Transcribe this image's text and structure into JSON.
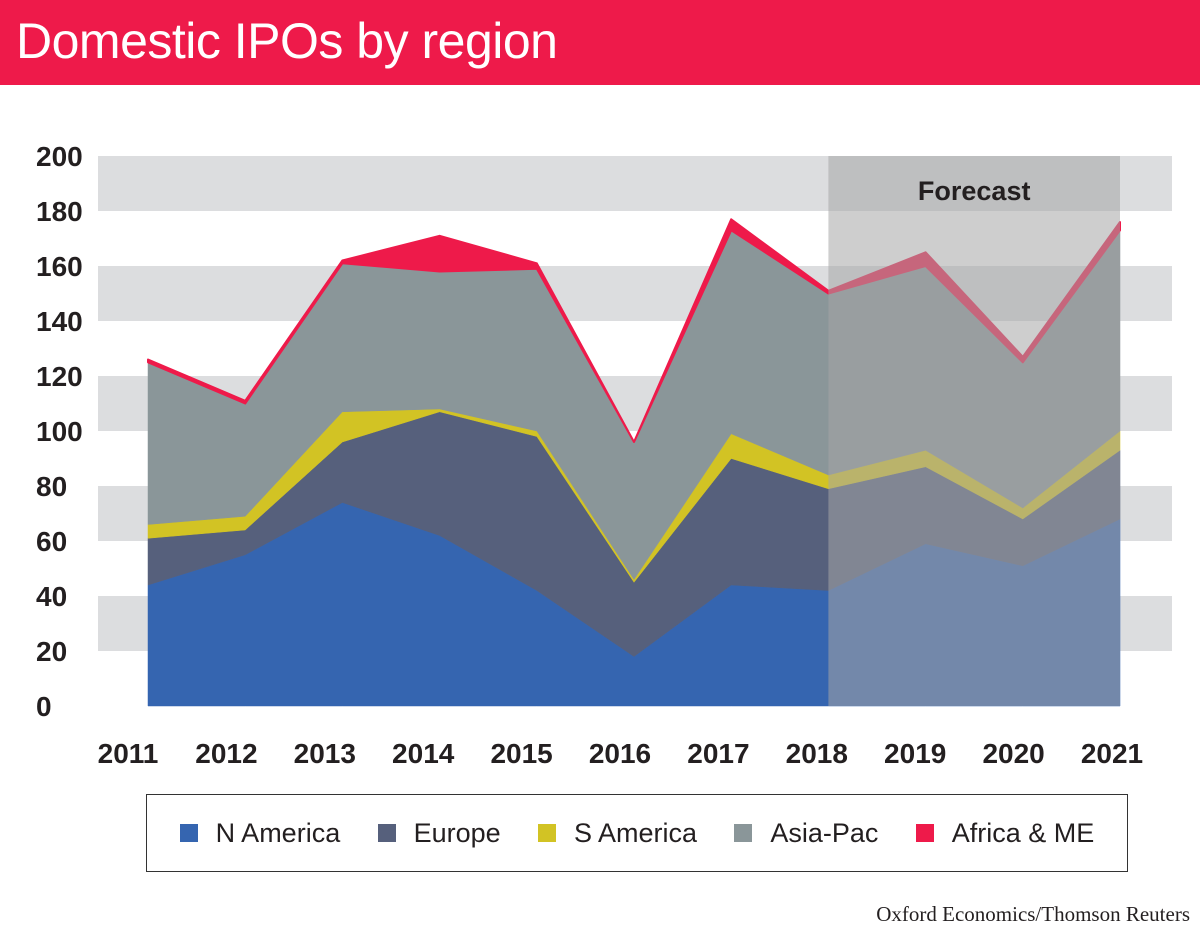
{
  "header": {
    "title": "Domestic IPOs by region"
  },
  "source": "Oxford Economics/Thomson Reuters",
  "colors": {
    "title_bar": "#ee1a4a",
    "n_america": "#3565b0",
    "europe": "#56607c",
    "s_america": "#d2c324",
    "asia_pac": "#8a9699",
    "africa_me": "#ee1a4a",
    "grid_band": "#dcdddf",
    "forecast_band": "#a6a6a6"
  },
  "chart_data": {
    "type": "area",
    "stacked": true,
    "title": "Domestic IPOs by region",
    "x": [
      "2011",
      "2012",
      "2013",
      "2014",
      "2015",
      "2016",
      "2017",
      "2018",
      "2019",
      "2020",
      "2021"
    ],
    "ylim": [
      0,
      200
    ],
    "yticks": [
      0,
      20,
      40,
      60,
      80,
      100,
      120,
      140,
      160,
      180,
      200
    ],
    "grid": "alternating horizontal bands",
    "forecast": {
      "label": "Forecast",
      "from": "2018",
      "to": "2021"
    },
    "series": [
      {
        "name": "N America",
        "color": "#3565b0",
        "values": [
          44,
          55,
          74,
          62,
          42,
          18,
          44,
          42,
          59,
          51,
          68
        ]
      },
      {
        "name": "Europe",
        "color": "#56607c",
        "values": [
          17,
          9,
          22,
          45,
          56,
          27,
          46,
          37,
          28,
          17,
          25
        ]
      },
      {
        "name": "S America",
        "color": "#d2c324",
        "values": [
          5,
          5,
          11,
          1,
          2,
          1,
          9,
          5,
          6,
          4,
          7
        ]
      },
      {
        "name": "Asia-Pac",
        "color": "#8a9699",
        "values": [
          59,
          41,
          54,
          50,
          59,
          50,
          74,
          66,
          67,
          53,
          73
        ]
      },
      {
        "name": "Africa & ME",
        "color": "#ee1a4a",
        "values": [
          1,
          1,
          1,
          13,
          2,
          0,
          4,
          1,
          5,
          2,
          3
        ]
      }
    ],
    "legend_position": "bottom"
  }
}
